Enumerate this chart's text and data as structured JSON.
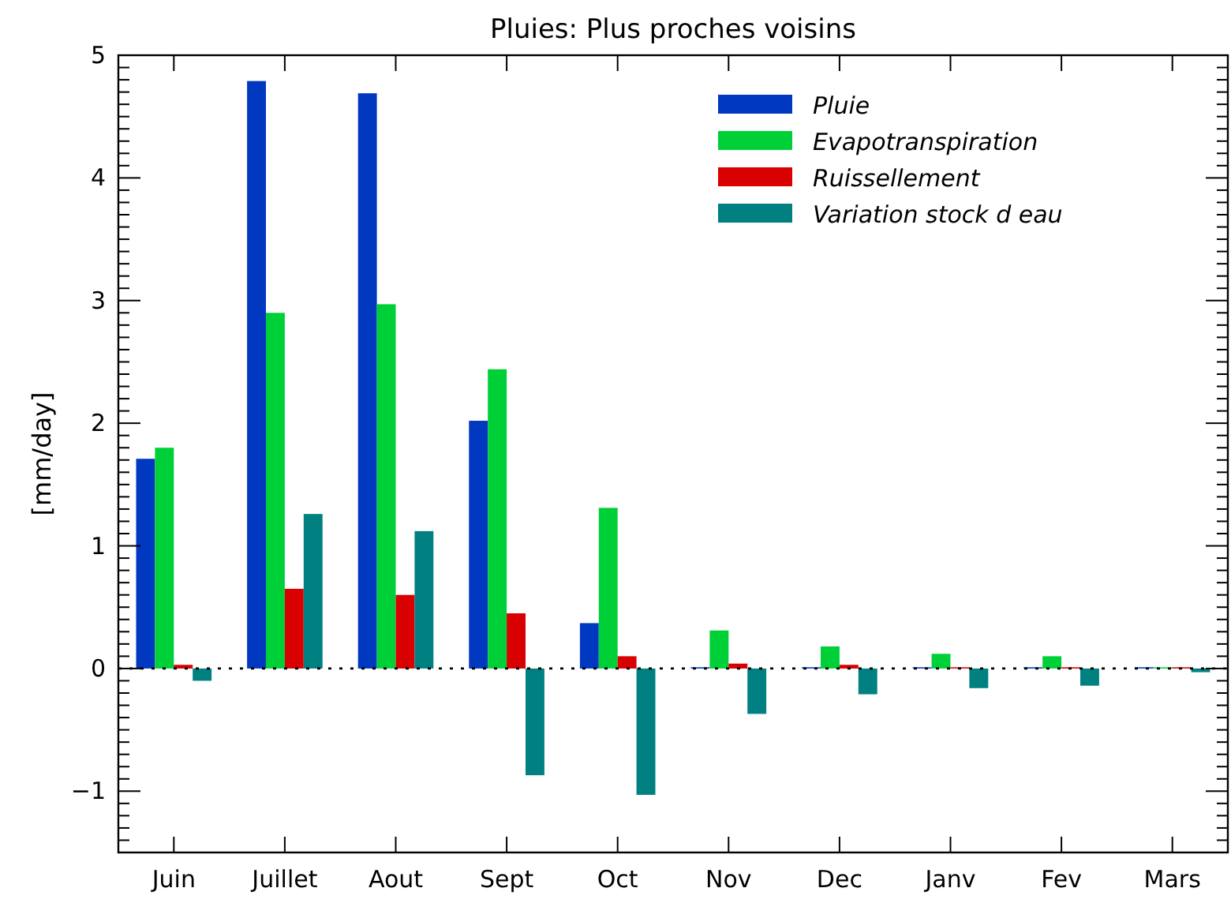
{
  "chart_data": {
    "type": "bar",
    "title": "Pluies: Plus proches voisins",
    "ylabel": "[mm/day]",
    "categories": [
      "Juin",
      "Juillet",
      "Aout",
      "Sept",
      "Oct",
      "Nov",
      "Dec",
      "Janv",
      "Fev",
      "Mars"
    ],
    "series": [
      {
        "name": "Pluie",
        "color": "#0038c0",
        "values": [
          1.71,
          4.79,
          4.69,
          2.02,
          0.37,
          0.01,
          0.01,
          0.01,
          0.01,
          0.01
        ]
      },
      {
        "name": "Evapotranspiration",
        "color": "#00d038",
        "values": [
          1.8,
          2.9,
          2.97,
          2.44,
          1.31,
          0.31,
          0.18,
          0.12,
          0.1,
          0.01
        ]
      },
      {
        "name": "Ruissellement",
        "color": "#d80000",
        "values": [
          0.03,
          0.65,
          0.6,
          0.45,
          0.1,
          0.04,
          0.03,
          0.01,
          0.01,
          0.01
        ]
      },
      {
        "name": "Variation stock d eau",
        "color": "#008080",
        "values": [
          -0.1,
          1.26,
          1.12,
          -0.87,
          -1.03,
          -0.37,
          -0.21,
          -0.16,
          -0.14,
          -0.03
        ]
      }
    ],
    "ylim": [
      -1.5,
      5
    ],
    "yticks": [
      {
        "value": -1.5,
        "label": null
      },
      {
        "value": -1.4,
        "label": null
      },
      {
        "value": -1.3,
        "label": null
      },
      {
        "value": -1.2,
        "label": null
      },
      {
        "value": -1.1,
        "label": null
      },
      {
        "value": -1,
        "label": "−1"
      },
      {
        "value": -0.9,
        "label": null
      },
      {
        "value": -0.8,
        "label": null
      },
      {
        "value": -0.7,
        "label": null
      },
      {
        "value": -0.6,
        "label": null
      },
      {
        "value": -0.5,
        "label": null
      },
      {
        "value": -0.4,
        "label": null
      },
      {
        "value": -0.3,
        "label": null
      },
      {
        "value": -0.2,
        "label": null
      },
      {
        "value": -0.1,
        "label": null
      },
      0,
      {
        "value": 0.1,
        "label": null
      },
      {
        "value": 0.2,
        "label": null
      },
      {
        "value": 0.3,
        "label": null
      },
      {
        "value": 0.4,
        "label": null
      },
      {
        "value": 0.5,
        "label": null
      },
      {
        "value": 0.6,
        "label": null
      },
      {
        "value": 0.7,
        "label": null
      },
      {
        "value": 0.8,
        "label": null
      },
      {
        "value": 0.9,
        "label": null
      },
      1,
      {
        "value": 1.1,
        "label": null
      },
      {
        "value": 1.2,
        "label": null
      },
      {
        "value": 1.3,
        "label": null
      },
      {
        "value": 1.4,
        "label": null
      },
      {
        "value": 1.5,
        "label": null
      },
      {
        "value": 1.6,
        "label": null
      },
      {
        "value": 1.7,
        "label": null
      },
      {
        "value": 1.8,
        "label": null
      },
      {
        "value": 1.9,
        "label": null
      },
      2,
      {
        "value": 2.1,
        "label": null
      },
      {
        "value": 2.2,
        "label": null
      },
      {
        "value": 2.3,
        "label": null
      },
      {
        "value": 2.4,
        "label": null
      },
      {
        "value": 2.5,
        "label": null
      },
      {
        "value": 2.6,
        "label": null
      },
      {
        "value": 2.7,
        "label": null
      },
      {
        "value": 2.8,
        "label": null
      },
      {
        "value": 2.9,
        "label": null
      },
      3,
      {
        "value": 3.1,
        "label": null
      },
      {
        "value": 3.2,
        "label": null
      },
      {
        "value": 3.3,
        "label": null
      },
      {
        "value": 3.4,
        "label": null
      },
      {
        "value": 3.5,
        "label": null
      },
      {
        "value": 3.6,
        "label": null
      },
      {
        "value": 3.7,
        "label": null
      },
      {
        "value": 3.8,
        "label": null
      },
      {
        "value": 3.9,
        "label": null
      },
      4,
      {
        "value": 4.1,
        "label": null
      },
      {
        "value": 4.2,
        "label": null
      },
      {
        "value": 4.3,
        "label": null
      },
      {
        "value": 4.4,
        "label": null
      },
      {
        "value": 4.5,
        "label": null
      },
      {
        "value": 4.6,
        "label": null
      },
      {
        "value": 4.7,
        "label": null
      },
      {
        "value": 4.8,
        "label": null
      },
      {
        "value": 4.9,
        "label": null
      },
      5
    ],
    "ref_lines": [
      {
        "axis": "y",
        "value": 0,
        "color": "#000000",
        "line_style": "dotted"
      }
    ],
    "legend": "top right",
    "grid": false
  }
}
